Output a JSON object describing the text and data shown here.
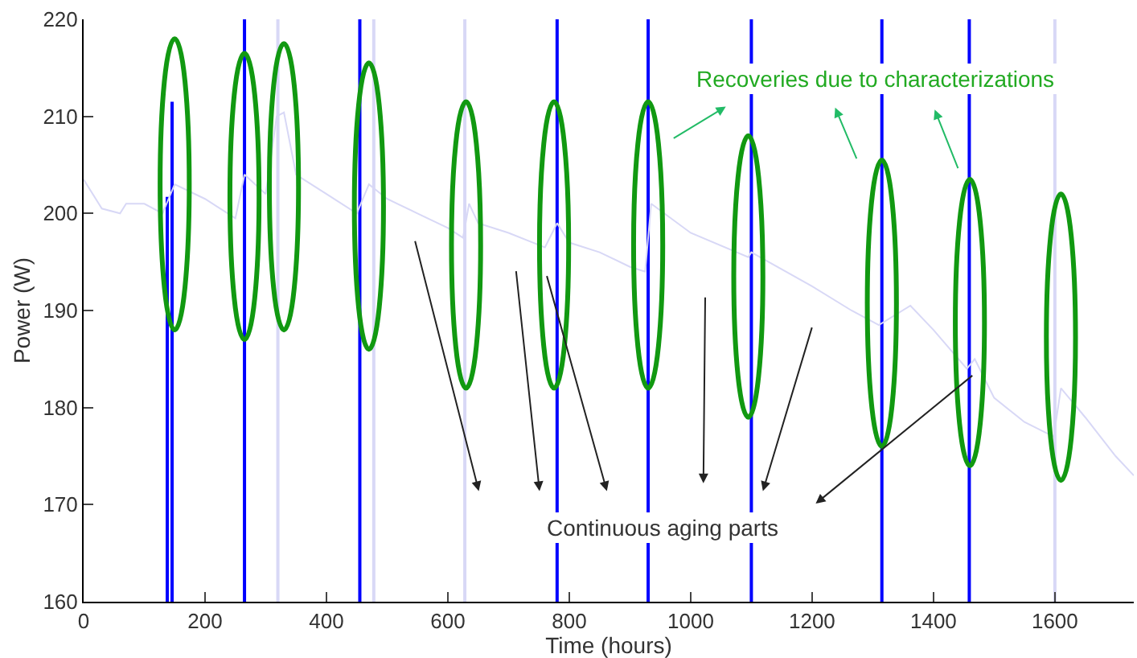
{
  "chart_data": {
    "type": "line",
    "xlabel": "Time (hours)",
    "ylabel": "Power (W)",
    "xlim": [
      0,
      1730
    ],
    "xticks": [
      0,
      200,
      400,
      600,
      800,
      1000,
      1200,
      1400,
      1600
    ],
    "ylim": [
      160,
      220
    ],
    "yticks": [
      160,
      170,
      180,
      190,
      200,
      210,
      220
    ],
    "grid": false,
    "line_style": "solid",
    "marker": "none",
    "series": [
      {
        "color": "#d8d8f6",
        "x": [
          0,
          30,
          60,
          70,
          100,
          130,
          150,
          200,
          250,
          265,
          300,
          318,
          330,
          350,
          400,
          450,
          470,
          500,
          550,
          600,
          625,
          635,
          650,
          700,
          760,
          780,
          800,
          850,
          900,
          925,
          935,
          1000,
          1095,
          1100,
          1200,
          1265,
          1310,
          1362,
          1400,
          1455,
          1468,
          1500,
          1550,
          1598,
          1610,
          1650,
          1700,
          1730
        ],
        "values": [
          203.5,
          200.5,
          200,
          201,
          201,
          200,
          203,
          201.5,
          199.5,
          204,
          202,
          210,
          210.4,
          204,
          202,
          200,
          203,
          201.5,
          200,
          198.5,
          197.5,
          201,
          199,
          198,
          196.5,
          199,
          197,
          196,
          194.5,
          194,
          201,
          198,
          195.5,
          196,
          192.5,
          190,
          188.5,
          190.5,
          188,
          184,
          185,
          181,
          178.5,
          177,
          182,
          179,
          175,
          173
        ]
      },
      {
        "type": "bar",
        "color": "#0000ff",
        "x": [
          137,
          146
        ],
        "base": [
          160,
          160
        ],
        "values": [
          41.7,
          51.5
        ]
      }
    ],
    "ref_lines": [
      {
        "axis": "x",
        "value": 265,
        "color": "#0000ff"
      },
      {
        "axis": "x",
        "value": 320,
        "color": "#d8d8f6"
      },
      {
        "axis": "x",
        "value": 455,
        "color": "#0000ff"
      },
      {
        "axis": "x",
        "value": 478,
        "color": "#d8d8f6"
      },
      {
        "axis": "x",
        "value": 628,
        "color": "#d8d8f6"
      },
      {
        "axis": "x",
        "value": 780,
        "color": "#0000ff"
      },
      {
        "axis": "x",
        "value": 930,
        "color": "#0000ff"
      },
      {
        "axis": "x",
        "value": 1100,
        "color": "#0000ff"
      },
      {
        "axis": "x",
        "value": 1315,
        "color": "#0000ff"
      },
      {
        "axis": "x",
        "value": 1459,
        "color": "#0000ff"
      },
      {
        "axis": "x",
        "value": 1600,
        "color": "#d8d8f6"
      }
    ],
    "annotations": [
      "Recoveries due to characterizations",
      "Continuous aging parts"
    ]
  }
}
